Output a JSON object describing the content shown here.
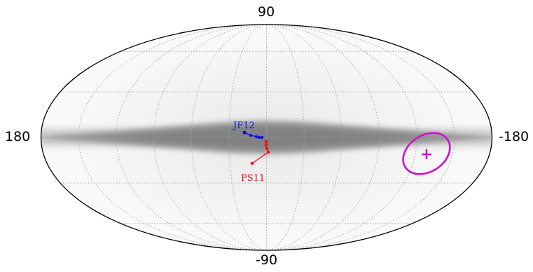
{
  "figure": {
    "projection": "mollweide",
    "axis_labels": {
      "top": "90",
      "bottom": "-90",
      "left": "180",
      "right": "-180"
    },
    "graticule": "dotted"
  },
  "tracks": [
    {
      "name": "JF12",
      "color": "#1010ee"
    },
    {
      "name": "PS11",
      "color": "#ee1010"
    }
  ],
  "marker": {
    "symbol": "+",
    "color": "#cc11cc"
  }
}
